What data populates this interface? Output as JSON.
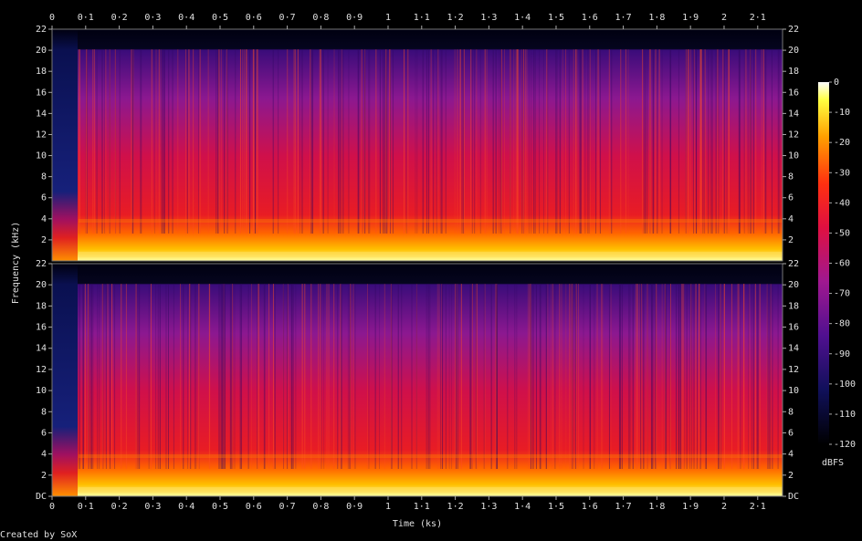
{
  "chart_data": {
    "type": "spectrogram",
    "xlabel": "Time (ks)",
    "ylabel": "Frequency (kHz)",
    "credit": "Created by SoX",
    "channels": 2,
    "xlim": [
      0,
      2.174
    ],
    "xticks": [
      0,
      {
        "value": 0.1,
        "label": "0·1"
      },
      {
        "value": 0.2,
        "label": "0·2"
      },
      {
        "value": 0.3,
        "label": "0·3"
      },
      {
        "value": 0.4,
        "label": "0·4"
      },
      {
        "value": 0.5,
        "label": "0·5"
      },
      {
        "value": 0.6,
        "label": "0·6"
      },
      {
        "value": 0.7,
        "label": "0·7"
      },
      {
        "value": 0.8,
        "label": "0·8"
      },
      {
        "value": 0.9,
        "label": "0·9"
      },
      1,
      {
        "value": 1.1,
        "label": "1·1"
      },
      {
        "value": 1.2,
        "label": "1·2"
      },
      {
        "value": 1.3,
        "label": "1·3"
      },
      {
        "value": 1.4,
        "label": "1·4"
      },
      {
        "value": 1.5,
        "label": "1·5"
      },
      {
        "value": 1.6,
        "label": "1·6"
      },
      {
        "value": 1.7,
        "label": "1·7"
      },
      {
        "value": 1.8,
        "label": "1·8"
      },
      {
        "value": 1.9,
        "label": "1·9"
      },
      2,
      {
        "value": 2.1,
        "label": "2·1"
      }
    ],
    "ylim": [
      0,
      22
    ],
    "yticks": [
      {
        "value": 0,
        "label": "DC"
      },
      2,
      4,
      6,
      8,
      10,
      12,
      14,
      16,
      18,
      20,
      22
    ],
    "colorbar": {
      "label": "dBFS",
      "lim": [
        -120,
        0
      ],
      "ticks": [
        0,
        -10,
        -20,
        -30,
        -40,
        -50,
        -60,
        -70,
        -80,
        -90,
        -100,
        -110,
        -120
      ]
    }
  }
}
